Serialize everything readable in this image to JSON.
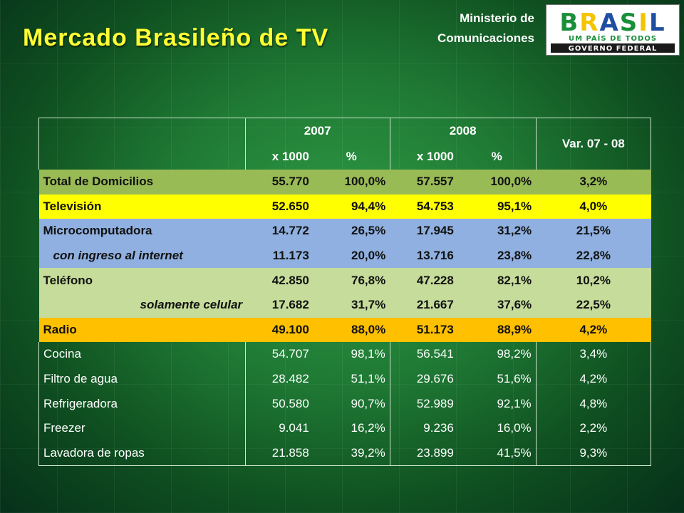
{
  "header": {
    "title": "Mercado Brasileño de TV",
    "ministry_line1": "Ministerio de",
    "ministry_line2": "Comunicaciones"
  },
  "logo": {
    "word": "BRASIL",
    "tagline": "UM PAÍS DE TODOS",
    "subtitle": "GOVERNO FEDERAL",
    "colors": [
      "#1a8f3a",
      "#f5c400",
      "#1f4fa3"
    ]
  },
  "table": {
    "year_2007": "2007",
    "year_2008": "2008",
    "var_header": "Var. 07 - 08",
    "unit_x1000": "x 1000",
    "unit_pct": "%",
    "rows": [
      {
        "label": "Total de Domicilios",
        "v2007": "55.770",
        "p2007": "100,0%",
        "v2008": "57.557",
        "p2008": "100,0%",
        "var": "3,2%"
      },
      {
        "label": "Televisión",
        "v2007": "52.650",
        "p2007": "94,4%",
        "v2008": "54.753",
        "p2008": "95,1%",
        "var": "4,0%"
      },
      {
        "label": "Microcomputadora",
        "v2007": "14.772",
        "p2007": "26,5%",
        "v2008": "17.945",
        "p2008": "31,2%",
        "var": "21,5%"
      },
      {
        "label": "con ingreso al internet",
        "v2007": "11.173",
        "p2007": "20,0%",
        "v2008": "13.716",
        "p2008": "23,8%",
        "var": "22,8%"
      },
      {
        "label": "Teléfono",
        "v2007": "42.850",
        "p2007": "76,8%",
        "v2008": "47.228",
        "p2008": "82,1%",
        "var": "10,2%"
      },
      {
        "label": "solamente celular",
        "v2007": "17.682",
        "p2007": "31,7%",
        "v2008": "21.667",
        "p2008": "37,6%",
        "var": "22,5%"
      },
      {
        "label": "Radio",
        "v2007": "49.100",
        "p2007": "88,0%",
        "v2008": "51.173",
        "p2008": "88,9%",
        "var": "4,2%"
      },
      {
        "label": "Cocina",
        "v2007": "54.707",
        "p2007": "98,1%",
        "v2008": "56.541",
        "p2008": "98,2%",
        "var": "3,4%"
      },
      {
        "label": "Filtro de agua",
        "v2007": "28.482",
        "p2007": "51,1%",
        "v2008": "29.676",
        "p2008": "51,6%",
        "var": "4,2%"
      },
      {
        "label": "Refrigeradora",
        "v2007": "50.580",
        "p2007": "90,7%",
        "v2008": "52.989",
        "p2008": "92,1%",
        "var": "4,8%"
      },
      {
        "label": "Freezer",
        "v2007": "9.041",
        "p2007": "16,2%",
        "v2008": "9.236",
        "p2008": "16,0%",
        "var": "2,2%"
      },
      {
        "label": "Lavadora de ropas",
        "v2007": "21.858",
        "p2007": "39,2%",
        "v2008": "23.899",
        "p2008": "41,5%",
        "var": "9,3%"
      }
    ]
  },
  "colors": {
    "background": "#1f7a34",
    "title": "#ffff33",
    "row_total": "#99bb55",
    "row_tv": "#ffff00",
    "row_micro": "#8fb0e0",
    "row_tel": "#c6dc9a",
    "row_radio": "#ffc000"
  }
}
